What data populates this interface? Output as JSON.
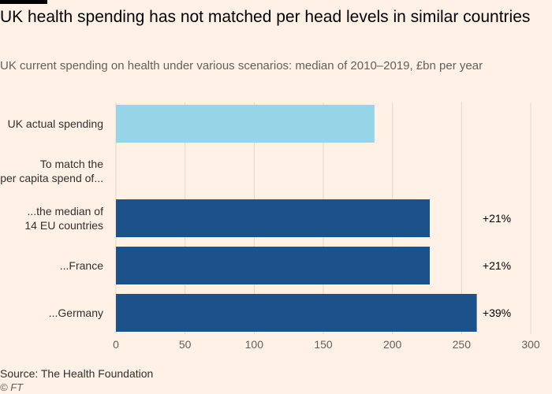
{
  "title": "UK health spending has not matched per head levels in similar countries",
  "subtitle": "UK current spending on health under various scenarios: median of 2010–2019, £bn per year",
  "source": "Source: The Health Foundation",
  "credit": "© FT",
  "colors": {
    "background": "#fff1e5",
    "uk_bar": "#96d4e8",
    "comparison_bar": "#1a5289",
    "gridline": "#e3d7cd"
  },
  "chart_data": {
    "type": "bar",
    "orientation": "horizontal",
    "categories": [
      "UK actual spending",
      "To match the per capita spend of...",
      "...the median of 14 EU countries",
      "...France",
      "...Germany"
    ],
    "category_lines": [
      [
        "UK actual spending"
      ],
      [
        "To match the",
        "per capita spend of..."
      ],
      [
        "...the median of",
        "14 EU countries"
      ],
      [
        "...France"
      ],
      [
        "...Germany"
      ]
    ],
    "values": [
      187,
      null,
      227,
      227,
      261
    ],
    "bar_colors": [
      "#96d4e8",
      null,
      "#1a5289",
      "#1a5289",
      "#1a5289"
    ],
    "data_labels": [
      "",
      "",
      "+21%",
      "+21%",
      "+39%"
    ],
    "xlim": [
      0,
      300
    ],
    "xticks": [
      0,
      50,
      100,
      150,
      200,
      250,
      300
    ],
    "grid": true
  }
}
